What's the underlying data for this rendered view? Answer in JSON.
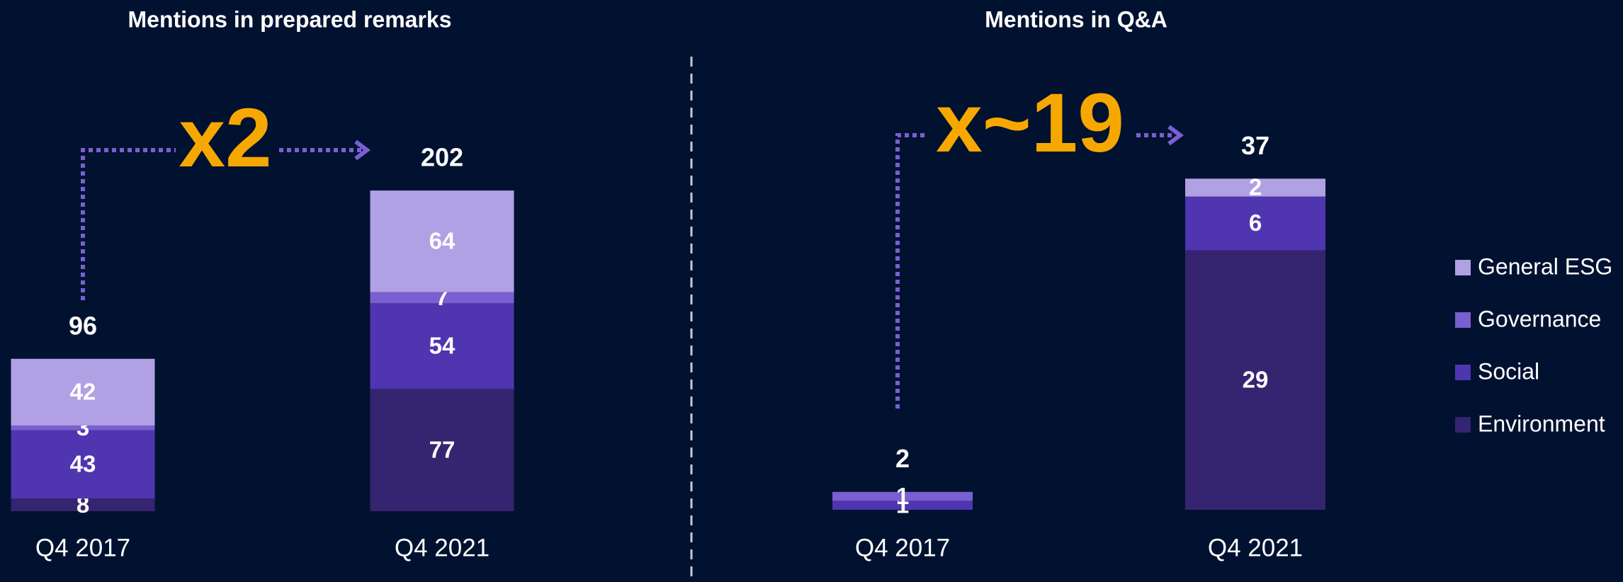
{
  "chart_data": [
    {
      "type": "stacked_bar",
      "title": "Mentions in prepared remarks",
      "categories": [
        "Q4 2017",
        "Q4 2021"
      ],
      "totals": [
        96,
        202
      ],
      "annotation": "x2",
      "series": [
        {
          "name": "Environment",
          "color": "#35246f",
          "values": [
            8,
            77
          ]
        },
        {
          "name": "Social",
          "color": "#4f35b0",
          "values": [
            43,
            54
          ]
        },
        {
          "name": "Governance",
          "color": "#7a5fd0",
          "values": [
            3,
            7
          ]
        },
        {
          "name": "General ESG",
          "color": "#b0a0e4",
          "values": [
            42,
            64
          ]
        }
      ]
    },
    {
      "type": "stacked_bar",
      "title": "Mentions in Q&A",
      "categories": [
        "Q4 2017",
        "Q4 2021"
      ],
      "totals": [
        2,
        37
      ],
      "annotation": "x~19",
      "series": [
        {
          "name": "Environment",
          "color": "#35246f",
          "values": [
            0,
            29
          ]
        },
        {
          "name": "Social",
          "color": "#4f35b0",
          "values": [
            1,
            6
          ]
        },
        {
          "name": "Governance",
          "color": "#7a5fd0",
          "values": [
            1,
            0
          ]
        },
        {
          "name": "General ESG",
          "color": "#b0a0e4",
          "values": [
            0,
            2
          ]
        }
      ]
    }
  ]
}
